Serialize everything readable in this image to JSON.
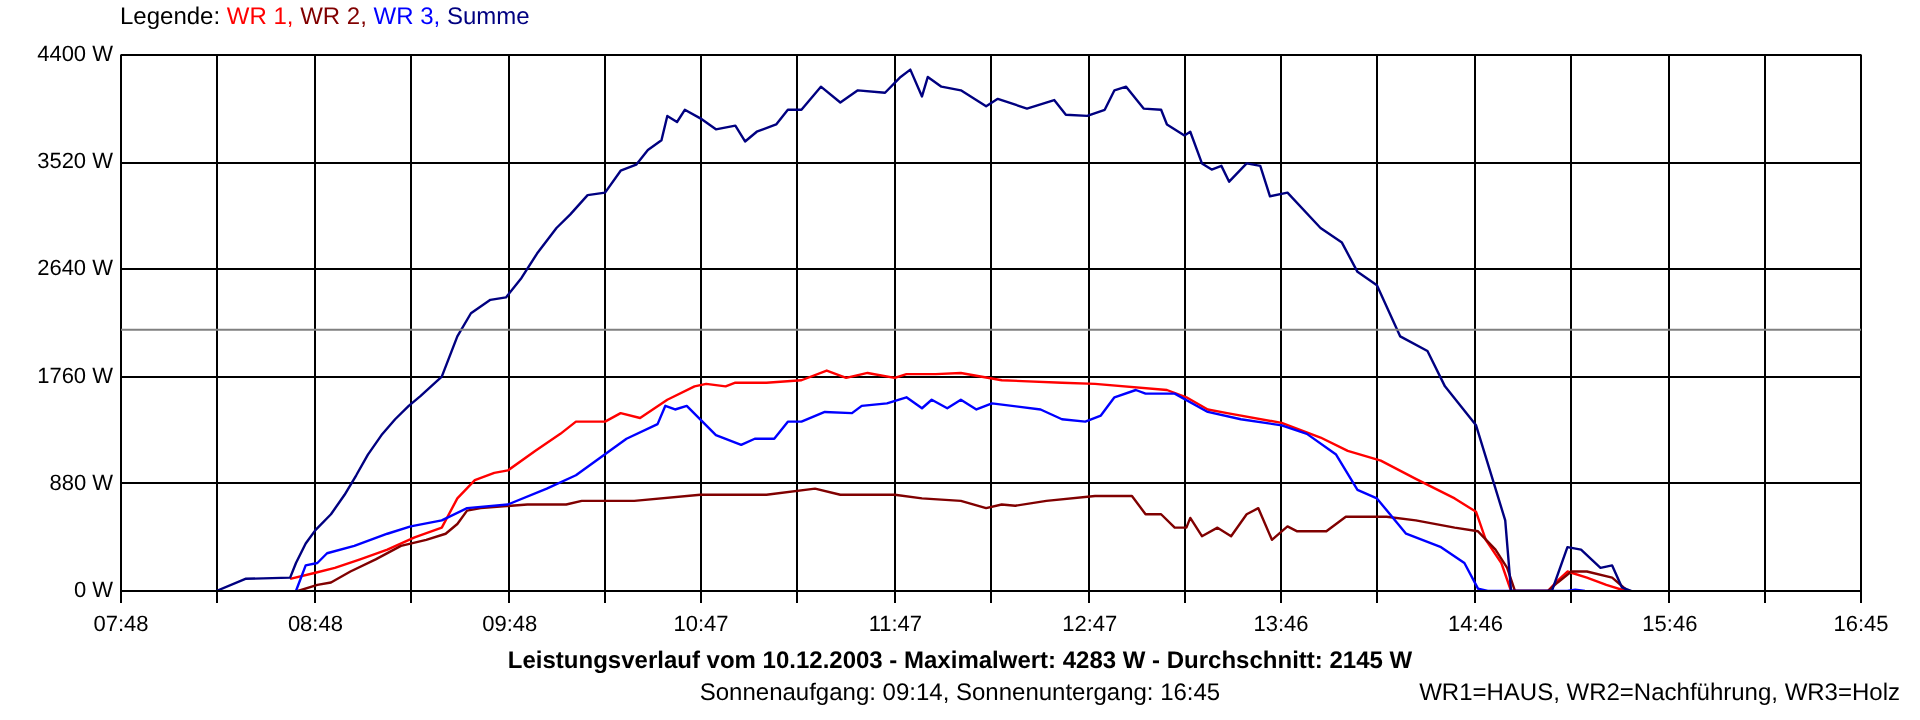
{
  "chart_data": {
    "type": "line",
    "title": "Leistungsverlauf vom 10.12.2003 - Maximalwert: 4283 W - Durchschnitt: 2145 W",
    "subtitle": "Sonnenaufgang: 09:14, Sonnenuntergang: 16:45",
    "annotations": [
      "WR1=HAUS, WR2=Nachführung, WR3=Holz"
    ],
    "legend_title": "Legende:",
    "legend": "top left",
    "grid": true,
    "xlim": [
      7.8,
      16.75
    ],
    "xticks": [
      {
        "value": 7.8,
        "label": "07:48"
      },
      {
        "value": 8.297,
        "label": null
      },
      {
        "value": 8.8,
        "label": "08:48"
      },
      {
        "value": 9.292,
        "label": null
      },
      {
        "value": 9.8,
        "label": "09:48"
      },
      {
        "value": 10.286,
        "label": null
      },
      {
        "value": 10.783,
        "label": "10:47"
      },
      {
        "value": 11.281,
        "label": null
      },
      {
        "value": 11.783,
        "label": "11:47"
      },
      {
        "value": 12.275,
        "label": null
      },
      {
        "value": 12.783,
        "label": "12:47"
      },
      {
        "value": 13.269,
        "label": null
      },
      {
        "value": 13.767,
        "label": "13:46"
      },
      {
        "value": 14.264,
        "label": null
      },
      {
        "value": 14.767,
        "label": "14:46"
      },
      {
        "value": 15.258,
        "label": null
      },
      {
        "value": 15.767,
        "label": "15:46"
      },
      {
        "value": 16.253,
        "label": null
      },
      {
        "value": 16.75,
        "label": "16:45"
      }
    ],
    "ylim": [
      0,
      4400
    ],
    "yticks": [
      {
        "value": 0,
        "label": "0 W"
      },
      {
        "value": 880,
        "label": "880 W"
      },
      {
        "value": 1760,
        "label": "1760 W"
      },
      {
        "value": 2640,
        "label": "2640 W"
      },
      {
        "value": 3520,
        "label": "3520 W"
      },
      {
        "value": 4400,
        "label": "4400 W"
      }
    ],
    "ref_lines": [
      {
        "axis": "y",
        "value": 2145,
        "color": "#808080"
      }
    ],
    "series": [
      {
        "name": "WR 1,",
        "color": "#ff0000",
        "x": [
          8.67,
          8.8,
          8.9,
          9.03,
          9.17,
          9.31,
          9.45,
          9.53,
          9.62,
          9.72,
          9.79,
          9.93,
          10.06,
          10.14,
          10.29,
          10.37,
          10.47,
          10.61,
          10.75,
          10.81,
          10.91,
          10.96,
          11.12,
          11.3,
          11.43,
          11.53,
          11.64,
          11.78,
          11.84,
          11.99,
          12.12,
          12.33,
          12.64,
          12.81,
          13.18,
          13.28,
          13.39,
          13.49,
          13.77,
          13.97,
          14.11,
          14.28,
          14.46,
          14.66,
          14.77,
          14.82,
          14.9,
          14.95,
          15.14,
          15.18,
          15.24,
          15.34,
          15.44,
          15.54
        ],
        "values": [
          100,
          150,
          190,
          260,
          340,
          440,
          520,
          760,
          910,
          970,
          990,
          1150,
          1290,
          1390,
          1390,
          1460,
          1420,
          1570,
          1680,
          1700,
          1680,
          1710,
          1710,
          1730,
          1810,
          1750,
          1790,
          1750,
          1780,
          1780,
          1790,
          1730,
          1710,
          1700,
          1650,
          1590,
          1490,
          1460,
          1380,
          1260,
          1150,
          1070,
          920,
          760,
          650,
          420,
          230,
          0,
          0,
          70,
          160,
          110,
          50,
          0
        ]
      },
      {
        "name": "WR 2,",
        "color": "#800000",
        "x": [
          8.71,
          8.81,
          8.88,
          8.98,
          9.11,
          9.24,
          9.37,
          9.47,
          9.53,
          9.58,
          9.65,
          9.89,
          10.09,
          10.17,
          10.44,
          10.78,
          11.12,
          11.37,
          11.5,
          11.78,
          11.92,
          12.12,
          12.25,
          12.33,
          12.4,
          12.56,
          12.81,
          13.0,
          13.07,
          13.15,
          13.22,
          13.28,
          13.3,
          13.36,
          13.44,
          13.51,
          13.59,
          13.65,
          13.72,
          13.8,
          13.85,
          14.0,
          14.1,
          14.31,
          14.46,
          14.66,
          14.78,
          14.87,
          14.93,
          14.97,
          15.14,
          15.19,
          15.26,
          15.34,
          15.47,
          15.55
        ],
        "values": [
          0,
          50,
          70,
          160,
          260,
          370,
          420,
          470,
          550,
          660,
          680,
          710,
          710,
          740,
          740,
          790,
          790,
          840,
          790,
          790,
          760,
          740,
          680,
          710,
          700,
          740,
          780,
          780,
          630,
          630,
          520,
          520,
          600,
          450,
          520,
          450,
          630,
          680,
          420,
          530,
          490,
          490,
          610,
          610,
          580,
          520,
          490,
          340,
          190,
          0,
          0,
          70,
          160,
          160,
          110,
          0
        ]
      },
      {
        "name": "WR 3,",
        "color": "#0000ff",
        "x": [
          8.7,
          8.75,
          8.81,
          8.86,
          9.0,
          9.17,
          9.29,
          9.45,
          9.58,
          9.79,
          9.99,
          10.14,
          10.27,
          10.4,
          10.56,
          10.6,
          10.65,
          10.71,
          10.86,
          10.99,
          11.06,
          11.16,
          11.23,
          11.3,
          11.42,
          11.56,
          11.61,
          11.74,
          11.84,
          11.92,
          11.97,
          12.05,
          12.12,
          12.2,
          12.28,
          12.53,
          12.64,
          12.76,
          12.84,
          12.91,
          13.02,
          13.07,
          13.22,
          13.39,
          13.56,
          13.77,
          13.9,
          14.05,
          14.16,
          14.26,
          14.41,
          14.59,
          14.71,
          14.78,
          14.83,
          15.24,
          15.28,
          15.33
        ],
        "values": [
          0,
          210,
          230,
          310,
          370,
          470,
          530,
          580,
          680,
          710,
          840,
          950,
          1100,
          1250,
          1370,
          1520,
          1490,
          1520,
          1280,
          1200,
          1250,
          1250,
          1390,
          1390,
          1470,
          1460,
          1520,
          1540,
          1590,
          1500,
          1570,
          1500,
          1570,
          1490,
          1540,
          1490,
          1410,
          1390,
          1440,
          1590,
          1650,
          1620,
          1620,
          1470,
          1410,
          1360,
          1290,
          1120,
          830,
          760,
          470,
          360,
          230,
          20,
          0,
          0,
          10,
          0
        ]
      },
      {
        "name": "Summe",
        "color": "#000080",
        "x": [
          8.29,
          8.44,
          8.67,
          8.7,
          8.75,
          8.8,
          8.88,
          8.95,
          9.01,
          9.07,
          9.14,
          9.21,
          9.28,
          9.34,
          9.45,
          9.53,
          9.6,
          9.7,
          9.78,
          9.86,
          9.94,
          10.04,
          10.11,
          10.2,
          10.29,
          10.37,
          10.45,
          10.51,
          10.58,
          10.61,
          10.66,
          10.7,
          10.78,
          10.86,
          10.96,
          11.01,
          11.07,
          11.17,
          11.23,
          11.3,
          11.4,
          11.5,
          11.59,
          11.73,
          11.81,
          11.86,
          11.92,
          11.95,
          12.02,
          12.12,
          12.25,
          12.31,
          12.46,
          12.6,
          12.66,
          12.77,
          12.86,
          12.91,
          12.97,
          13.06,
          13.15,
          13.18,
          13.27,
          13.3,
          13.36,
          13.41,
          13.46,
          13.5,
          13.59,
          13.66,
          13.71,
          13.8,
          13.97,
          14.08,
          14.16,
          14.26,
          14.38,
          14.52,
          14.61,
          14.77,
          14.87,
          14.92,
          14.95,
          15.16,
          15.24,
          15.31,
          15.41,
          15.47,
          15.52,
          15.57
        ],
        "values": [
          0,
          100,
          110,
          230,
          390,
          500,
          630,
          790,
          950,
          1120,
          1280,
          1410,
          1520,
          1600,
          1760,
          2090,
          2280,
          2390,
          2410,
          2570,
          2770,
          2980,
          3090,
          3250,
          3270,
          3450,
          3500,
          3620,
          3700,
          3900,
          3850,
          3950,
          3880,
          3790,
          3820,
          3690,
          3770,
          3830,
          3950,
          3950,
          4140,
          4010,
          4110,
          4090,
          4220,
          4280,
          4060,
          4220,
          4140,
          4110,
          3980,
          4040,
          3960,
          4030,
          3910,
          3900,
          3950,
          4110,
          4140,
          3960,
          3950,
          3830,
          3740,
          3770,
          3510,
          3460,
          3490,
          3360,
          3510,
          3490,
          3240,
          3270,
          2980,
          2860,
          2620,
          2510,
          2090,
          1970,
          1680,
          1360,
          840,
          580,
          0,
          0,
          360,
          340,
          190,
          210,
          30,
          0
        ]
      }
    ]
  }
}
